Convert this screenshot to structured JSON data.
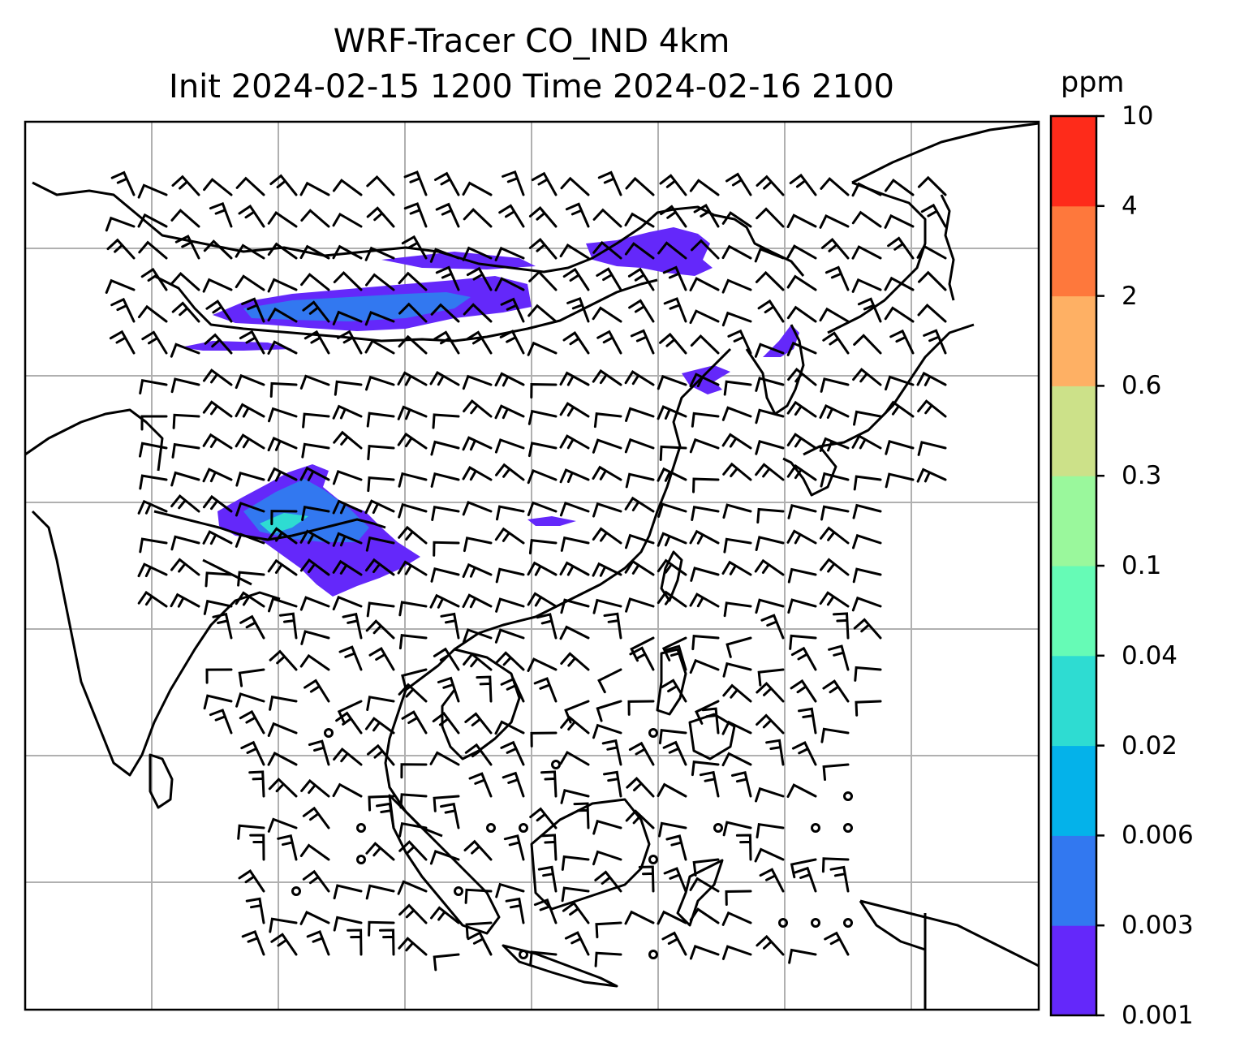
{
  "title": {
    "line1": "WRF-Tracer CO_IND 4km",
    "line2": "Init 2024-02-15 1200 Time 2024-02-16 2100"
  },
  "colorbar": {
    "units": "ppm",
    "ticks": [
      "0.001",
      "0.003",
      "0.006",
      "0.02",
      "0.04",
      "0.1",
      "0.3",
      "0.6",
      "2",
      "4",
      "10"
    ],
    "colors": [
      "#6428fa",
      "#3278f0",
      "#04b2ea",
      "#2edcd2",
      "#66fbb6",
      "#9af89c",
      "#cce189",
      "#feb064",
      "#fe783c",
      "#fe2b1a"
    ]
  },
  "map": {
    "coastline_color": "#000000",
    "gridline_color": "#b0b0b0",
    "wind_barb_color": "#000000",
    "plume_colors": [
      "#6428fa",
      "#3278f0",
      "#04b2ea",
      "#2edcd2"
    ]
  }
}
